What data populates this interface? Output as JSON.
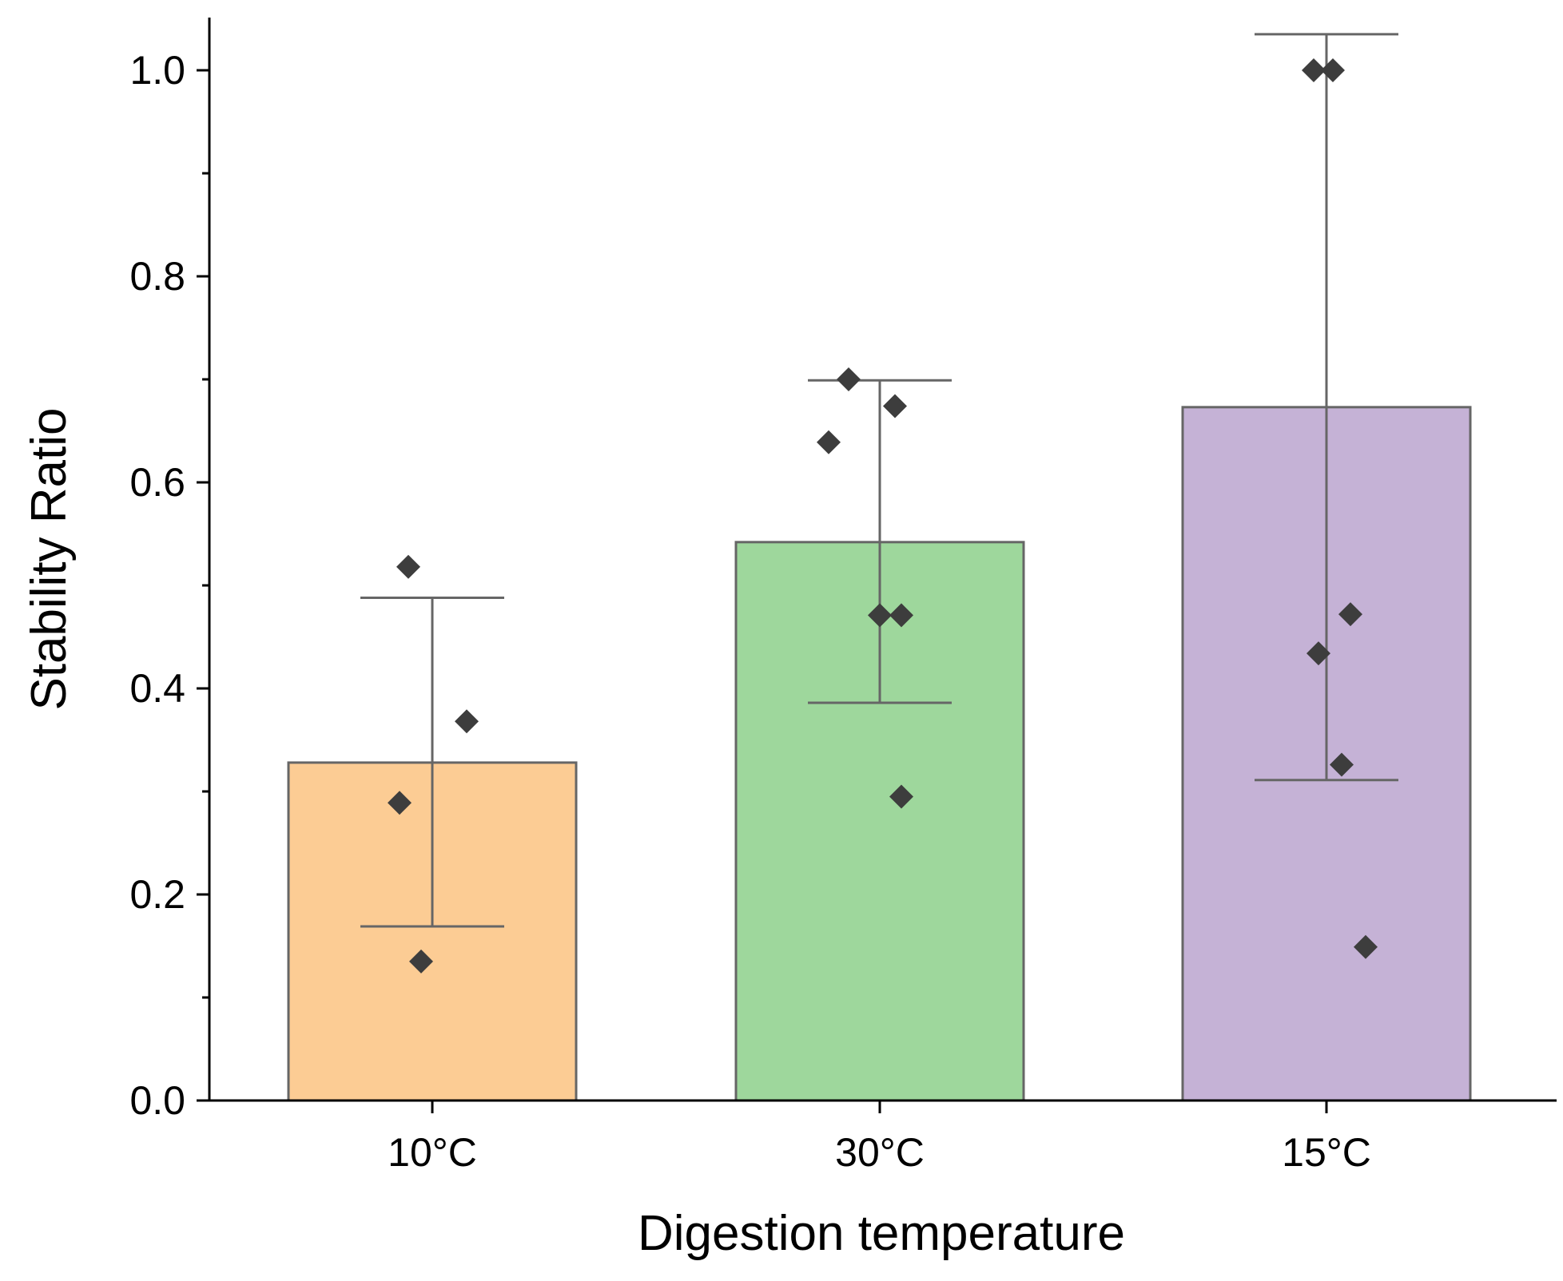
{
  "chart_data": {
    "type": "bar",
    "title": "",
    "xlabel": "Digestion temperature",
    "ylabel": "Stability Ratio",
    "ylim": [
      0,
      1.05
    ],
    "yticks": [
      0.0,
      0.2,
      0.4,
      0.6,
      0.8,
      1.0
    ],
    "ytick_labels": [
      "0.0",
      "0.2",
      "0.4",
      "0.6",
      "0.8",
      "1.0"
    ],
    "yminor_ticks": [
      0.1,
      0.3,
      0.5,
      0.7,
      0.9
    ],
    "categories": [
      "10°C",
      "30°C",
      "15°C"
    ],
    "values": [
      0.328,
      0.542,
      0.673
    ],
    "error_lower": [
      0.169,
      0.386,
      0.311
    ],
    "error_upper": [
      0.488,
      0.699,
      1.035
    ],
    "points": [
      [
        0.518,
        0.368,
        0.289,
        0.135
      ],
      [
        0.7,
        0.674,
        0.639,
        0.471,
        0.471,
        0.295
      ],
      [
        1.0,
        1.0,
        0.472,
        0.434,
        0.326,
        0.149
      ]
    ],
    "colors": [
      "#fccc94",
      "#9ed79c",
      "#c5b2d6"
    ],
    "point_color": "#3d3d3d",
    "grid": false,
    "legend": "none"
  }
}
